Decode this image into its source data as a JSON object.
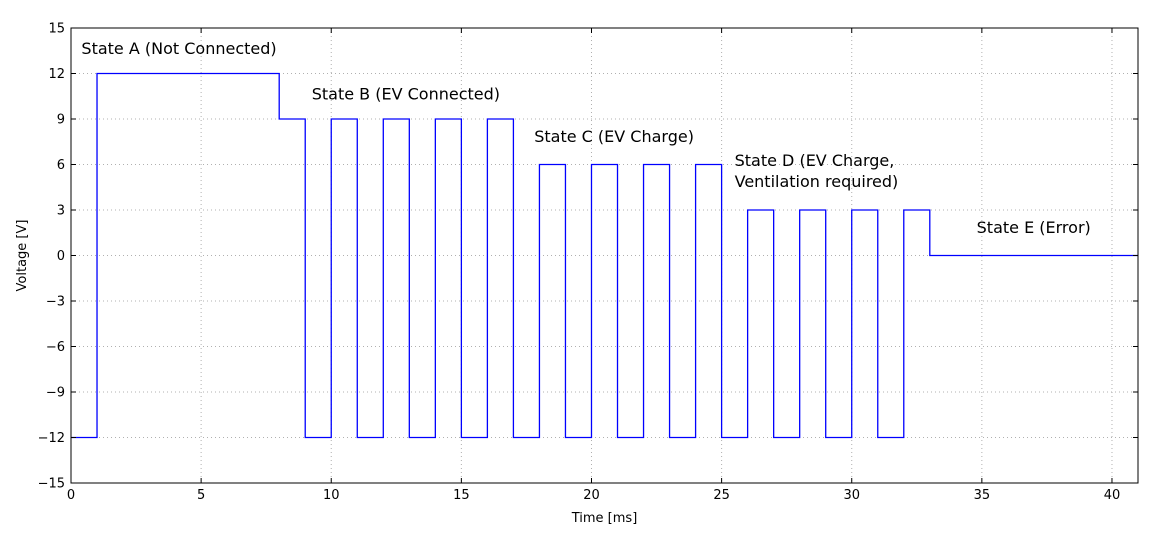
{
  "chart_data": {
    "type": "line",
    "title": "",
    "xlabel": "Time [ms]",
    "ylabel": "Voltage [V]",
    "xlim": [
      0,
      41
    ],
    "ylim": [
      -15,
      15
    ],
    "xticks": [
      0,
      5,
      10,
      15,
      20,
      25,
      30,
      35,
      40
    ],
    "xtick_labels": [
      "0",
      "5",
      "10",
      "15",
      "20",
      "25",
      "30",
      "35",
      "40"
    ],
    "yticks": [
      -15,
      -12,
      -9,
      -6,
      -3,
      0,
      3,
      6,
      9,
      12,
      15
    ],
    "ytick_labels": [
      "−15",
      "−12",
      "−9",
      "−6",
      "−3",
      "0",
      "3",
      "6",
      "9",
      "12",
      "15"
    ],
    "grid": true,
    "line_color": "#0000ff",
    "series": [
      {
        "x": [
          0,
          1,
          1,
          8,
          8,
          9,
          9,
          10,
          10,
          11,
          11,
          12,
          12,
          13,
          13,
          14,
          14,
          15,
          15,
          16,
          16,
          17,
          17,
          18,
          18,
          19,
          19,
          20,
          20,
          21,
          21,
          22,
          22,
          23,
          23,
          24,
          24,
          25,
          25,
          26,
          26,
          27,
          27,
          28,
          28,
          29,
          29,
          30,
          30,
          31,
          31,
          32,
          32,
          33,
          33,
          41
        ],
        "y": [
          -12,
          -12,
          12,
          12,
          9,
          9,
          -12,
          -12,
          9,
          9,
          -12,
          -12,
          9,
          9,
          -12,
          -12,
          9,
          9,
          -12,
          -12,
          9,
          9,
          -12,
          -12,
          6,
          6,
          -12,
          -12,
          6,
          6,
          -12,
          -12,
          6,
          6,
          -12,
          -12,
          6,
          6,
          -12,
          -12,
          3,
          3,
          -12,
          -12,
          3,
          3,
          -12,
          -12,
          3,
          3,
          -12,
          -12,
          3,
          3,
          0,
          0
        ]
      }
    ],
    "annotations": [
      {
        "lines": [
          "State A (Not Connected)"
        ],
        "x": 0.4,
        "y": 13.3
      },
      {
        "lines": [
          "State B (EV Connected)"
        ],
        "x": 9.25,
        "y": 10.3
      },
      {
        "lines": [
          "State C (EV Charge)"
        ],
        "x": 17.8,
        "y": 7.5
      },
      {
        "lines": [
          "State D (EV Charge,",
          "Ventilation required)"
        ],
        "x": 25.5,
        "y": 5.9
      },
      {
        "lines": [
          "State E (Error)"
        ],
        "x": 34.8,
        "y": 1.5
      }
    ]
  }
}
